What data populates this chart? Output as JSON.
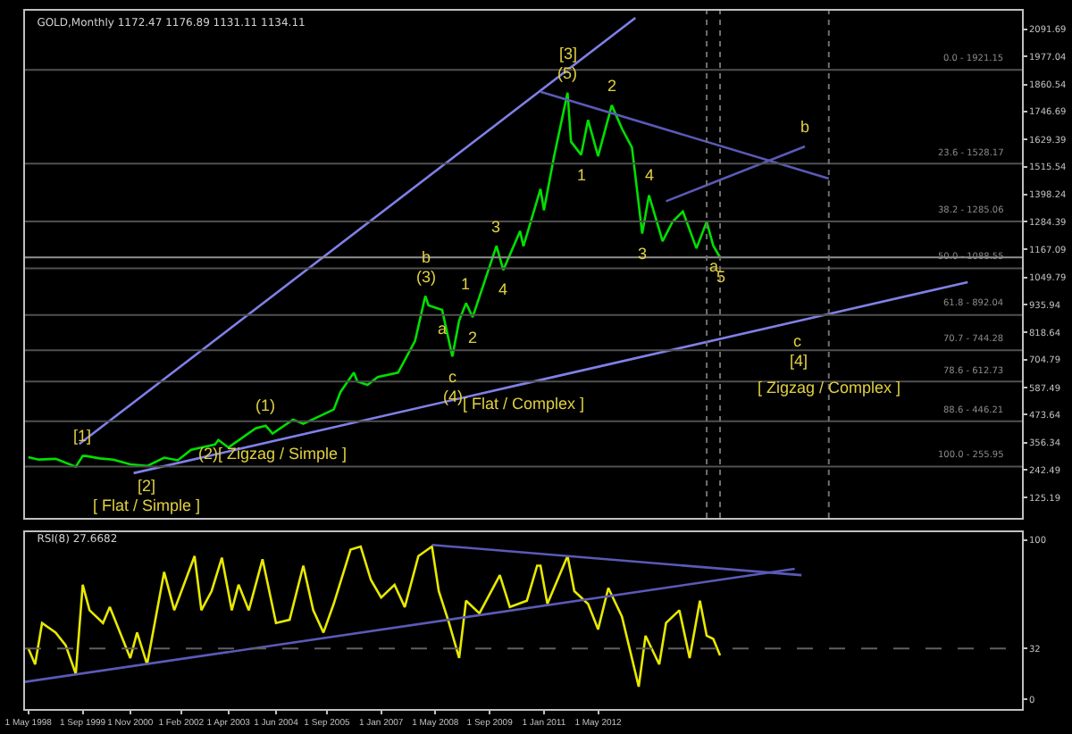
{
  "chart_data": [
    {
      "type": "line",
      "title": "GOLD,Monthly 1172.47 1176.89 1131.11 1134.11",
      "tick_labels": "y",
      "grid": false,
      "xlim": [
        "1998-04",
        "2022-10"
      ],
      "ylim": [
        40,
        2170
      ],
      "yticks": [
        125.19,
        242.49,
        356.34,
        473.64,
        587.49,
        704.79,
        818.64,
        935.94,
        1049.79,
        1167.09,
        1284.39,
        1398.24,
        1515.54,
        1629.39,
        1746.69,
        1860.54,
        1977.04,
        2091.69
      ],
      "series": [
        {
          "color": "#00e000",
          "x": [
            "1998-05",
            "1998-08",
            "1999-01",
            "1999-07",
            "1999-09",
            "1999-10",
            "2000-02",
            "2000-06",
            "2000-11",
            "2001-04",
            "2001-09",
            "2002-01",
            "2002-05",
            "2002-12",
            "2003-01",
            "2003-04",
            "2003-12",
            "2004-03",
            "2004-05",
            "2004-11",
            "2005-02",
            "2005-11",
            "2006-01",
            "2006-05",
            "2006-06",
            "2006-09",
            "2006-12",
            "2007-06",
            "2007-11",
            "2008-02",
            "2008-03",
            "2008-07",
            "2008-10",
            "2008-12",
            "2009-02",
            "2009-04",
            "2009-11",
            "2010-01",
            "2010-06",
            "2010-07",
            "2010-12",
            "2011-01",
            "2011-04",
            "2011-08",
            "2011-09",
            "2011-12",
            "2012-02",
            "2012-05",
            "2012-09",
            "2012-12",
            "2013-03",
            "2013-04",
            "2013-06",
            "2013-08",
            "2013-12",
            "2014-03",
            "2014-06",
            "2014-10",
            "2015-01",
            "2015-03",
            "2015-05"
          ],
          "values": [
            295,
            285,
            288,
            255,
            300,
            300,
            290,
            285,
            265,
            258,
            293,
            282,
            326,
            348,
            367,
            336,
            416,
            427,
            394,
            453,
            435,
            495,
            569,
            650,
            613,
            599,
            632,
            650,
            783,
            972,
            933,
            914,
            718,
            869,
            942,
            883,
            1182,
            1081,
            1245,
            1181,
            1421,
            1332,
            1556,
            1826,
            1620,
            1565,
            1711,
            1559,
            1773,
            1675,
            1596,
            1476,
            1234,
            1395,
            1202,
            1284,
            1327,
            1172,
            1284,
            1183,
            1134
          ]
        },
        {
          "color": "#8080e8",
          "x": [
            "1999-08",
            "2013-04"
          ],
          "values": [
            350,
            2140
          ]
        },
        {
          "color": "#8080e8",
          "x": [
            "2000-12",
            "2010-07",
            "2017-04",
            "2021-06"
          ],
          "values": [
            228,
            603,
            867,
            1030
          ]
        },
        {
          "color": "#5a5ab8",
          "x": [
            "2010-12",
            "2018-01"
          ],
          "values": [
            1830,
            1465
          ]
        },
        {
          "color": "#5a5ab8",
          "x": [
            "2014-01",
            "2017-06"
          ],
          "values": [
            1370,
            1600
          ]
        }
      ],
      "ref_lines": [
        {
          "axis": "y",
          "value": 1921.15,
          "label": null,
          "color": "#505050"
        },
        {
          "axis": "y",
          "value": 1528.17,
          "label": null,
          "color": "#505050"
        },
        {
          "axis": "y",
          "value": 1285.06,
          "label": null,
          "color": "#505050"
        },
        {
          "axis": "y",
          "value": 1088.55,
          "label": null,
          "color": "#505050"
        },
        {
          "axis": "y",
          "value": 892.04,
          "label": null,
          "color": "#505050"
        },
        {
          "axis": "y",
          "value": 744.28,
          "label": null,
          "color": "#505050"
        },
        {
          "axis": "y",
          "value": 612.73,
          "label": null,
          "color": "#505050"
        },
        {
          "axis": "y",
          "value": 446.21,
          "label": null,
          "color": "#505050"
        },
        {
          "axis": "y",
          "value": 255.95,
          "label": null,
          "color": "#505050"
        },
        {
          "axis": "y",
          "value": 1134.11,
          "label": null,
          "color": "#909090"
        },
        {
          "axis": "x",
          "value": "2015-01",
          "label": null,
          "color": "#707070",
          "line_style": "dotted"
        },
        {
          "axis": "x",
          "value": "2015-05",
          "label": null,
          "color": "#707070",
          "line_style": "dotted"
        },
        {
          "axis": "x",
          "value": "2018-01",
          "label": null,
          "color": "#707070",
          "line_style": "dotted"
        }
      ],
      "annotations": [
        {
          "text": "[1]",
          "x": "1999-09",
          "y": 300
        },
        {
          "text": "[2]",
          "x": "2001-04",
          "y": 258
        },
        {
          "text": "[ Flat / Simple ]",
          "x": "2001-04",
          "y": 258
        },
        {
          "text": "(1)",
          "x": "2004-03",
          "y": 427
        },
        {
          "text": "(2)[ Zigzag / Simple ]",
          "x": "2004-05",
          "y": 394
        },
        {
          "text": "(3)",
          "x": "2008-02",
          "y": 972
        },
        {
          "text": "b",
          "x": "2008-02",
          "y": 972
        },
        {
          "text": "a",
          "x": "2008-07",
          "y": 914
        },
        {
          "text": "c",
          "x": "2008-10",
          "y": 718
        },
        {
          "text": "(4)",
          "x": "2008-10",
          "y": 718
        },
        {
          "text": "[ Flat / Complex ]",
          "x": "2010-07",
          "y": 603
        },
        {
          "text": "1",
          "x": "2009-02",
          "y": 942
        },
        {
          "text": "2",
          "x": "2009-04",
          "y": 883
        },
        {
          "text": "3",
          "x": "2009-11",
          "y": 1182
        },
        {
          "text": "4",
          "x": "2010-01",
          "y": 1081
        },
        {
          "text": "(5)",
          "x": "2011-08",
          "y": 1826
        },
        {
          "text": "[3]",
          "x": "2011-08",
          "y": 1826
        },
        {
          "text": "1",
          "x": "2011-12",
          "y": 1565
        },
        {
          "text": "2",
          "x": "2012-09",
          "y": 1773
        },
        {
          "text": "3",
          "x": "2013-06",
          "y": 1234
        },
        {
          "text": "4",
          "x": "2013-08",
          "y": 1395
        },
        {
          "text": "5",
          "x": "2015-05",
          "y": 1134
        },
        {
          "text": "a",
          "x": "2015-03",
          "y": 1183
        },
        {
          "text": "c",
          "x": "2017-04",
          "y": 867
        },
        {
          "text": "[4]",
          "x": "2017-04",
          "y": 867
        },
        {
          "text": "[ Zigzag / Complex ]",
          "x": "2018-01",
          "y": 587
        },
        {
          "text": "b",
          "x": "2017-06",
          "y": 1600
        },
        {
          "text": "0.0 - 1921.15",
          "x": "2022-06",
          "y": 1921.15
        },
        {
          "text": "23.6 - 1528.17",
          "x": "2022-06",
          "y": 1528.17
        },
        {
          "text": "38.2 - 1285.06",
          "x": "2022-06",
          "y": 1285.06
        },
        {
          "text": "50.0 - 1088.55",
          "x": "2022-06",
          "y": 1088.55
        },
        {
          "text": "61.8 - 892.04",
          "x": "2022-06",
          "y": 892.04
        },
        {
          "text": "70.7 - 744.28",
          "x": "2022-06",
          "y": 744.28
        },
        {
          "text": "78.6 - 612.73",
          "x": "2022-06",
          "y": 612.73
        },
        {
          "text": "88.6 - 446.21",
          "x": "2022-06",
          "y": 446.21
        },
        {
          "text": "100.0 - 255.95",
          "x": "2022-06",
          "y": 255.95
        }
      ]
    },
    {
      "type": "line",
      "title": "RSI(8) 27.6682",
      "grid": false,
      "xlim": [
        "1998-04",
        "2022-10"
      ],
      "xticks": [
        {
          "value": "1998-05",
          "label": "1 May 1998"
        },
        {
          "value": "1999-09",
          "label": "1 Sep 1999"
        },
        {
          "value": "2000-11",
          "label": "1 Nov 2000"
        },
        {
          "value": "2002-02",
          "label": "1 Feb 2002"
        },
        {
          "value": "2003-04",
          "label": "1 Apr 2003"
        },
        {
          "value": "2004-06",
          "label": "1 Jun 2004"
        },
        {
          "value": "2005-09",
          "label": "1 Sep 2005"
        },
        {
          "value": "2007-01",
          "label": "1 Jan 2007"
        },
        {
          "value": "2008-05",
          "label": "1 May 2008"
        },
        {
          "value": "2009-09",
          "label": "1 Sep 2009"
        },
        {
          "value": "2011-01",
          "label": "1 Jan 2011"
        },
        {
          "value": "2012-05",
          "label": "1 May 2012"
        }
      ],
      "ylim": [
        -6,
        105
      ],
      "yticks": [
        0,
        32,
        100
      ],
      "series": [
        {
          "color": "#e8e800",
          "x": [
            "1998-05",
            "1998-07",
            "1998-09",
            "1999-01",
            "1999-04",
            "1999-07",
            "1999-09",
            "1999-11",
            "2000-03",
            "2000-05",
            "2000-11",
            "2001-01",
            "2001-04",
            "2001-09",
            "2001-12",
            "2002-06",
            "2002-08",
            "2002-11",
            "2003-02",
            "2003-05",
            "2003-07",
            "2003-10",
            "2004-02",
            "2004-06",
            "2004-10",
            "2005-02",
            "2005-05",
            "2005-08",
            "2005-11",
            "2006-04",
            "2006-07",
            "2006-10",
            "2007-01",
            "2007-05",
            "2007-08",
            "2007-12",
            "2008-04",
            "2008-06",
            "2008-09",
            "2008-12",
            "2009-02",
            "2009-06",
            "2009-12",
            "2010-03",
            "2010-08",
            "2010-11",
            "2010-12",
            "2011-02",
            "2011-08",
            "2011-10",
            "2012-02",
            "2012-05",
            "2012-08",
            "2012-12",
            "2013-05",
            "2013-07",
            "2013-11",
            "2014-01",
            "2014-05",
            "2014-08",
            "2014-11",
            "2015-01",
            "2015-03",
            "2015-05"
          ],
          "values": [
            32,
            22,
            48,
            42,
            34,
            16,
            72,
            56,
            48,
            58,
            26,
            42,
            22,
            80,
            56,
            90,
            56,
            68,
            89,
            56,
            72,
            56,
            88,
            48,
            50,
            84,
            56,
            42,
            60,
            94,
            96,
            75,
            64,
            72,
            58,
            90,
            96,
            68,
            48,
            26,
            62,
            54,
            78,
            58,
            62,
            84,
            84,
            60,
            90,
            68,
            60,
            44,
            70,
            52,
            8,
            40,
            22,
            48,
            56,
            26,
            62,
            40,
            38,
            27.7
          ]
        },
        {
          "color": "#5a5ab8",
          "x": [
            "2008-04",
            "2017-05"
          ],
          "values": [
            97,
            78
          ]
        },
        {
          "color": "#5a5ab8",
          "x": [
            "1998-04",
            "2017-03"
          ],
          "values": [
            11,
            82
          ]
        }
      ],
      "ref_lines": [
        {
          "axis": "y",
          "value": 32,
          "label": null,
          "color": "#606060",
          "line_style": "dashed"
        }
      ]
    }
  ]
}
